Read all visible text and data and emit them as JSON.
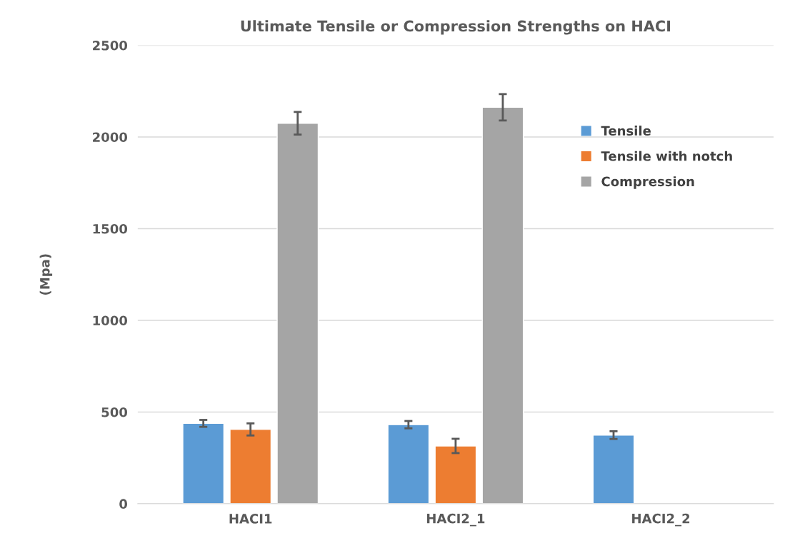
{
  "chart_data": {
    "type": "bar",
    "title": "Ultimate Tensile or Compression Strengths on HACI",
    "ylabel": "(Mpa)",
    "categories": [
      "HACI1",
      "HACI2_1",
      "HACI2_2"
    ],
    "series": [
      {
        "name": "Tensile",
        "color": "#5b9bd5",
        "values": [
          438,
          431,
          374
        ],
        "errors": [
          19,
          20,
          21
        ]
      },
      {
        "name": "Tensile with notch",
        "color": "#ed7d31",
        "values": [
          405,
          315,
          null
        ],
        "errors": [
          33,
          39,
          null
        ]
      },
      {
        "name": "Compression",
        "color": "#a5a5a5",
        "values": [
          2075,
          2162,
          null
        ],
        "errors": [
          62,
          72,
          null
        ]
      }
    ],
    "ylim": [
      0,
      2500
    ],
    "yticks": [
      0,
      500,
      1000,
      1500,
      2000,
      2500
    ],
    "grid": "y",
    "legend": "top right"
  }
}
